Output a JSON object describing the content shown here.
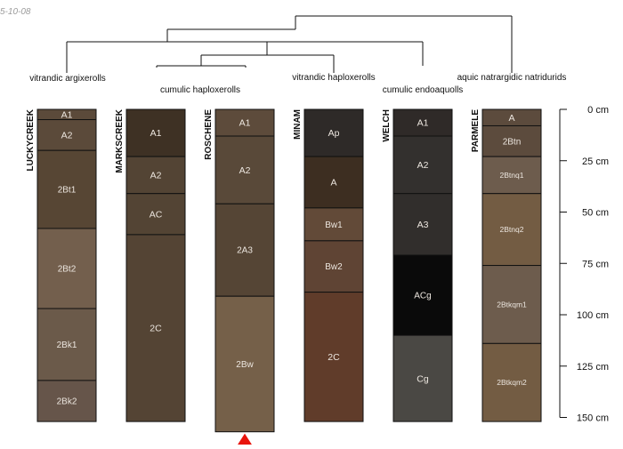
{
  "date_stamp": "5-10-08",
  "taxa": [
    {
      "id": "argix",
      "label": "vitrandic argixerolls"
    },
    {
      "id": "cumhap",
      "label": "cumulic haploxerolls"
    },
    {
      "id": "vithap",
      "label": "vitrandic haploxerolls"
    },
    {
      "id": "cumendo",
      "label": "cumulic endoaquolls"
    },
    {
      "id": "aquic",
      "label": "aquic natrargidic natridurids"
    }
  ],
  "depth_axis": {
    "unit": "cm",
    "ticks": [
      "0 cm",
      "25 cm",
      "50 cm",
      "75 cm",
      "100 cm",
      "125 cm",
      "150 cm"
    ]
  },
  "profiles": [
    {
      "name": "LUCKYCREEK",
      "horizons": [
        {
          "name": "A1",
          "top": 0,
          "bottom": 5,
          "color": "#5b4a3a"
        },
        {
          "name": "A2",
          "top": 5,
          "bottom": 20,
          "color": "#5b4a3a"
        },
        {
          "name": "2Bt1",
          "top": 20,
          "bottom": 58,
          "color": "#574634"
        },
        {
          "name": "2Bt2",
          "top": 58,
          "bottom": 97,
          "color": "#735f4d"
        },
        {
          "name": "2Bk1",
          "top": 97,
          "bottom": 132,
          "color": "#6b5a4a"
        },
        {
          "name": "2Bk2",
          "top": 132,
          "bottom": 152,
          "color": "#66554a"
        }
      ]
    },
    {
      "name": "MARKSCREEK",
      "horizons": [
        {
          "name": "A1",
          "top": 0,
          "bottom": 23,
          "color": "#3e3124"
        },
        {
          "name": "A2",
          "top": 23,
          "bottom": 41,
          "color": "#534434"
        },
        {
          "name": "AC",
          "top": 41,
          "bottom": 61,
          "color": "#534434"
        },
        {
          "name": "2C",
          "top": 61,
          "bottom": 152,
          "color": "#544434"
        }
      ]
    },
    {
      "name": "ROSCHENE",
      "horizons": [
        {
          "name": "A1",
          "top": 0,
          "bottom": 13,
          "color": "#5d4b3b"
        },
        {
          "name": "A2",
          "top": 13,
          "bottom": 46,
          "color": "#594939"
        },
        {
          "name": "2A3",
          "top": 46,
          "bottom": 91,
          "color": "#554535"
        },
        {
          "name": "2Bw",
          "top": 91,
          "bottom": 157,
          "color": "#756049"
        }
      ],
      "marker": true
    },
    {
      "name": "MINAM",
      "horizons": [
        {
          "name": "Ap",
          "top": 0,
          "bottom": 23,
          "color": "#2e2a28"
        },
        {
          "name": "A",
          "top": 23,
          "bottom": 48,
          "color": "#3d2e21"
        },
        {
          "name": "Bw1",
          "top": 48,
          "bottom": 64,
          "color": "#624a38"
        },
        {
          "name": "Bw2",
          "top": 64,
          "bottom": 89,
          "color": "#5f4434"
        },
        {
          "name": "2C",
          "top": 89,
          "bottom": 152,
          "color": "#603c2a"
        }
      ]
    },
    {
      "name": "WELCH",
      "horizons": [
        {
          "name": "A1",
          "top": 0,
          "bottom": 13,
          "color": "#2f2a28"
        },
        {
          "name": "A2",
          "top": 13,
          "bottom": 41,
          "color": "#33302e"
        },
        {
          "name": "A3",
          "top": 41,
          "bottom": 71,
          "color": "#312e2c"
        },
        {
          "name": "ACg",
          "top": 71,
          "bottom": 110,
          "color": "#0a0a0a"
        },
        {
          "name": "Cg",
          "top": 110,
          "bottom": 152,
          "color": "#4a4844"
        }
      ]
    },
    {
      "name": "PARMELE",
      "horizons": [
        {
          "name": "A",
          "top": 0,
          "bottom": 8,
          "color": "#5c4b3d"
        },
        {
          "name": "2Btn",
          "top": 8,
          "bottom": 23,
          "color": "#5c4b3d"
        },
        {
          "name": "2Btnq1",
          "top": 23,
          "bottom": 41,
          "color": "#6d5c4d"
        },
        {
          "name": "2Btnq2",
          "top": 41,
          "bottom": 76,
          "color": "#735c43"
        },
        {
          "name": "2Btkqm1",
          "top": 76,
          "bottom": 114,
          "color": "#6d5c4d"
        },
        {
          "name": "2Btkqm2",
          "top": 114,
          "bottom": 152,
          "color": "#735c43"
        }
      ]
    }
  ]
}
